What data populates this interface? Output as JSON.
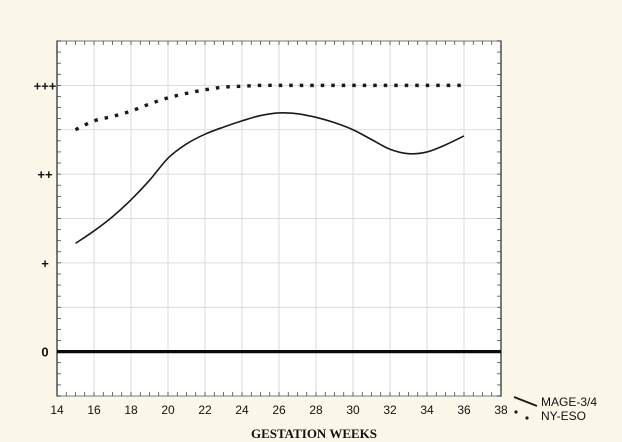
{
  "chart_data": {
    "type": "line",
    "title": "",
    "xlabel": "GESTATION WEEKS",
    "ylabel": "",
    "xlim": [
      14,
      38
    ],
    "ylim": [
      -0.5,
      3.5
    ],
    "x_ticks": [
      14,
      16,
      18,
      20,
      22,
      24,
      26,
      28,
      30,
      32,
      34,
      36,
      38
    ],
    "y_ticks": [
      {
        "value": 0,
        "label": "0"
      },
      {
        "value": 1,
        "label": "+"
      },
      {
        "value": 2,
        "label": "++"
      },
      {
        "value": 3,
        "label": "+++"
      }
    ],
    "grid": true,
    "legend_position": "bottom-right",
    "series": [
      {
        "name": "MAGE-3/4",
        "style": "solid",
        "color": "#1a1a1a",
        "x": [
          15,
          16,
          17,
          18,
          19,
          20,
          21,
          22,
          23,
          24,
          25,
          26,
          27,
          28,
          29,
          30,
          31,
          32,
          33,
          34,
          35,
          36
        ],
        "y": [
          1.22,
          1.36,
          1.52,
          1.71,
          1.93,
          2.18,
          2.34,
          2.45,
          2.53,
          2.6,
          2.66,
          2.69,
          2.68,
          2.64,
          2.58,
          2.5,
          2.39,
          2.28,
          2.23,
          2.25,
          2.33,
          2.43
        ]
      },
      {
        "name": "NY-ESO",
        "style": "dotted",
        "color": "#1a1a1a",
        "x": [
          15,
          16,
          17,
          18,
          19,
          20,
          21,
          22,
          23,
          24,
          25,
          26,
          27,
          28,
          29,
          30,
          31,
          32,
          33,
          34,
          35,
          36
        ],
        "y": [
          2.5,
          2.6,
          2.65,
          2.71,
          2.79,
          2.86,
          2.91,
          2.95,
          2.98,
          2.99,
          3.0,
          3.0,
          3.0,
          3.0,
          3.0,
          3.0,
          3.0,
          3.0,
          3.0,
          3.0,
          3.0,
          3.0
        ]
      }
    ],
    "zero_line": {
      "y": 0,
      "style": "bold"
    }
  }
}
